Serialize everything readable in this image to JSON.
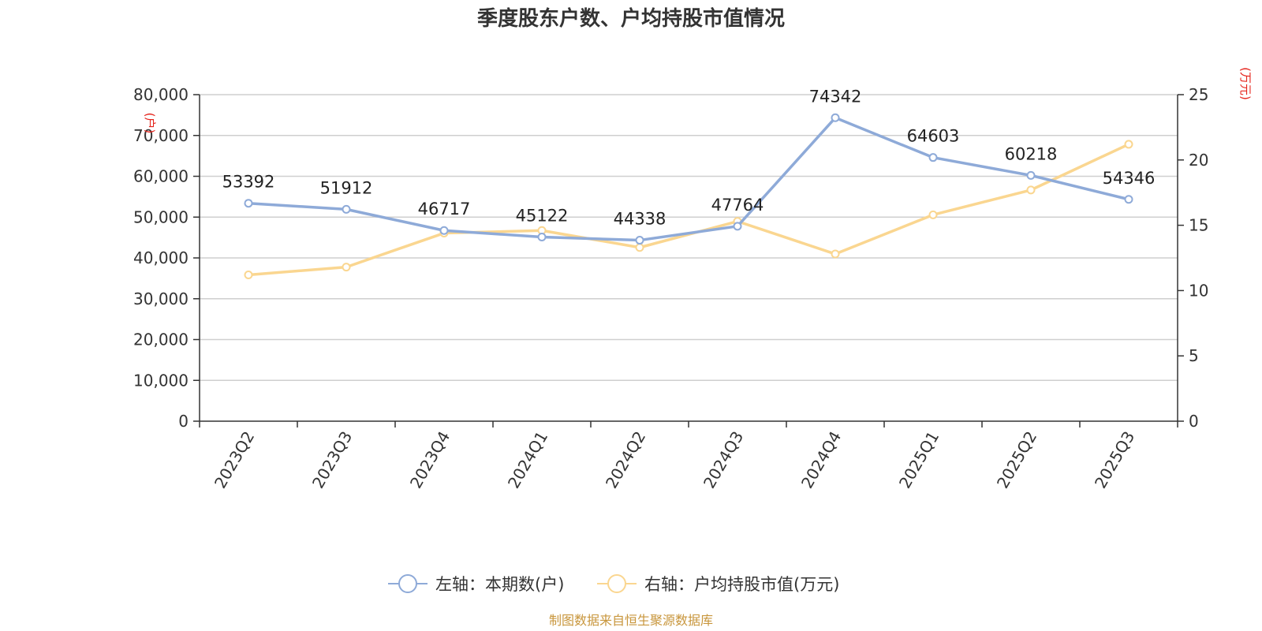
{
  "chart_data": {
    "type": "line",
    "title": "季度股东户数、户均持股市值情况",
    "categories": [
      "2023Q2",
      "2023Q3",
      "2023Q4",
      "2024Q1",
      "2024Q2",
      "2024Q3",
      "2024Q4",
      "2025Q1",
      "2025Q2",
      "2025Q3"
    ],
    "left_axis": {
      "unit": "(户)",
      "ylim": [
        0,
        80000
      ],
      "ticks": [
        "0",
        "10,000",
        "20,000",
        "30,000",
        "40,000",
        "50,000",
        "60,000",
        "70,000",
        "80,000"
      ]
    },
    "right_axis": {
      "unit": "(万元)",
      "ylim": [
        0,
        25
      ],
      "ticks": [
        "0",
        "5",
        "10",
        "15",
        "20",
        "25"
      ]
    },
    "series": [
      {
        "name": "左轴：本期数(户)",
        "axis": "left",
        "color": "#8eaad8",
        "values": [
          53392,
          51912,
          46717,
          45122,
          44338,
          47764,
          74342,
          64603,
          60218,
          54346
        ],
        "labels": [
          "53392",
          "51912",
          "46717",
          "45122",
          "44338",
          "47764",
          "74342",
          "64603",
          "60218",
          "54346"
        ]
      },
      {
        "name": "右轴：户均持股市值(万元)",
        "axis": "right",
        "color": "#fad690",
        "values": [
          11.2,
          11.8,
          14.4,
          14.6,
          13.3,
          15.3,
          12.8,
          15.8,
          17.7,
          21.2
        ]
      }
    ],
    "grid": true,
    "legend_position": "bottom"
  },
  "source_note": "制图数据来自恒生聚源数据库"
}
